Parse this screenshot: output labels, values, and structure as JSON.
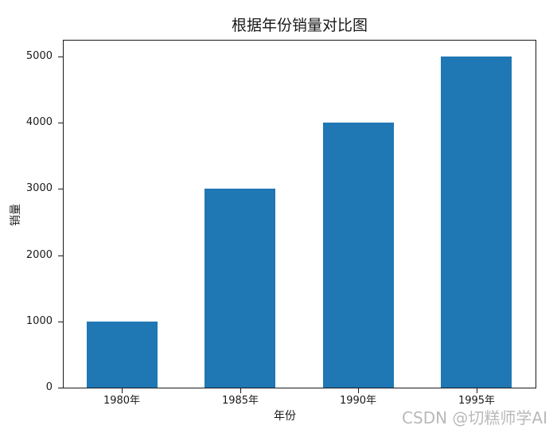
{
  "figure": {
    "watermark": "CSDN @切糕师学AI"
  },
  "chart_data": {
    "type": "bar",
    "title": "根据年份销量对比图",
    "xlabel": "年份",
    "ylabel": "销量",
    "categories": [
      "1980年",
      "1985年",
      "1990年",
      "1995年"
    ],
    "values": [
      1000,
      3000,
      4000,
      5000
    ],
    "yticks": [
      0,
      1000,
      2000,
      3000,
      4000,
      5000
    ],
    "ylim": [
      0,
      5250
    ],
    "grid": false,
    "legend": "none",
    "bar_color": "#1f77b4",
    "bar_width_ratio": 0.6
  },
  "colors": {
    "bar": "#1f77b4",
    "axis": "#1a1a1a",
    "text": "#1a1a1a",
    "watermark": "#b9b9b9",
    "background": "#ffffff"
  }
}
